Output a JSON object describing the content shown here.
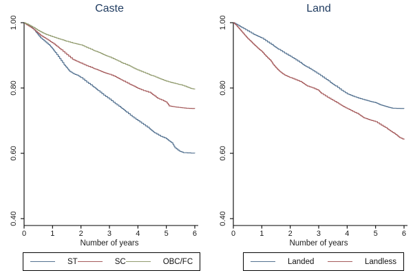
{
  "figure": {
    "background": "#ffffff",
    "title_color": "#1e3a5f",
    "axis_color": "#1a1a1a"
  },
  "chart_data": [
    {
      "type": "line",
      "subtype": "kaplan-meier-step",
      "title": "Caste",
      "xlabel": "Number of years",
      "ylabel": "",
      "xlim": [
        0,
        6
      ],
      "ylim": [
        0.4,
        1.0
      ],
      "grid": false,
      "legend_position": "bottom",
      "x_ticks": [
        0,
        1,
        2,
        3,
        4,
        5,
        6
      ],
      "x_tick_labels": [
        "0",
        "1",
        "2",
        "3",
        "4",
        "5",
        "6"
      ],
      "y_ticks": [
        1.0,
        0.8,
        0.6,
        0.4
      ],
      "y_tick_labels": [
        "1.00",
        "0.80",
        "0.60",
        "0.40"
      ],
      "series": [
        {
          "name": "ST",
          "color": "#52708f",
          "points": [
            [
              0,
              1
            ],
            [
              0.1,
              0.995
            ],
            [
              0.25,
              0.987
            ],
            [
              0.4,
              0.973
            ],
            [
              0.5,
              0.962
            ],
            [
              0.6,
              0.952
            ],
            [
              0.75,
              0.941
            ],
            [
              0.9,
              0.93
            ],
            [
              1,
              0.92
            ],
            [
              1.1,
              0.908
            ],
            [
              1.25,
              0.89
            ],
            [
              1.4,
              0.872
            ],
            [
              1.5,
              0.862
            ],
            [
              1.6,
              0.851
            ],
            [
              1.75,
              0.843
            ],
            [
              1.9,
              0.838
            ],
            [
              2,
              0.832
            ],
            [
              2.2,
              0.818
            ],
            [
              2.4,
              0.806
            ],
            [
              2.5,
              0.8
            ],
            [
              2.6,
              0.792
            ],
            [
              2.8,
              0.778
            ],
            [
              3,
              0.766
            ],
            [
              3.2,
              0.752
            ],
            [
              3.4,
              0.74
            ],
            [
              3.5,
              0.734
            ],
            [
              3.6,
              0.726
            ],
            [
              3.8,
              0.712
            ],
            [
              4,
              0.7
            ],
            [
              4.2,
              0.688
            ],
            [
              4.4,
              0.676
            ],
            [
              4.5,
              0.669
            ],
            [
              4.6,
              0.662
            ],
            [
              4.8,
              0.652
            ],
            [
              5,
              0.645
            ],
            [
              5.1,
              0.638
            ],
            [
              5.2,
              0.632
            ],
            [
              5.3,
              0.617
            ],
            [
              5.45,
              0.607
            ],
            [
              5.6,
              0.602
            ],
            [
              6,
              0.6
            ]
          ]
        },
        {
          "name": "SC",
          "color": "#a4595a",
          "points": [
            [
              0,
              1
            ],
            [
              0.1,
              0.993
            ],
            [
              0.25,
              0.985
            ],
            [
              0.4,
              0.975
            ],
            [
              0.5,
              0.968
            ],
            [
              0.6,
              0.96
            ],
            [
              0.75,
              0.952
            ],
            [
              0.9,
              0.944
            ],
            [
              1,
              0.938
            ],
            [
              1.15,
              0.928
            ],
            [
              1.3,
              0.917
            ],
            [
              1.5,
              0.902
            ],
            [
              1.7,
              0.888
            ],
            [
              1.85,
              0.882
            ],
            [
              2,
              0.876
            ],
            [
              2.2,
              0.868
            ],
            [
              2.4,
              0.862
            ],
            [
              2.5,
              0.858
            ],
            [
              2.7,
              0.851
            ],
            [
              2.85,
              0.846
            ],
            [
              3,
              0.842
            ],
            [
              3.2,
              0.835
            ],
            [
              3.35,
              0.828
            ],
            [
              3.5,
              0.821
            ],
            [
              3.7,
              0.812
            ],
            [
              3.85,
              0.806
            ],
            [
              4,
              0.799
            ],
            [
              4.2,
              0.792
            ],
            [
              4.45,
              0.785
            ],
            [
              4.55,
              0.778
            ],
            [
              4.7,
              0.768
            ],
            [
              4.9,
              0.761
            ],
            [
              5,
              0.757
            ],
            [
              5.1,
              0.745
            ],
            [
              5.3,
              0.742
            ],
            [
              5.5,
              0.74
            ],
            [
              5.7,
              0.738
            ],
            [
              6,
              0.737
            ]
          ]
        },
        {
          "name": "OBC/FC",
          "color": "#909a6d",
          "points": [
            [
              0,
              1
            ],
            [
              0.1,
              0.996
            ],
            [
              0.25,
              0.989
            ],
            [
              0.4,
              0.982
            ],
            [
              0.5,
              0.976
            ],
            [
              0.65,
              0.969
            ],
            [
              0.8,
              0.963
            ],
            [
              1,
              0.957
            ],
            [
              1.2,
              0.951
            ],
            [
              1.4,
              0.946
            ],
            [
              1.5,
              0.943
            ],
            [
              1.7,
              0.938
            ],
            [
              1.85,
              0.935
            ],
            [
              2,
              0.932
            ],
            [
              2.2,
              0.924
            ],
            [
              2.4,
              0.917
            ],
            [
              2.5,
              0.913
            ],
            [
              2.7,
              0.906
            ],
            [
              2.85,
              0.9
            ],
            [
              3,
              0.895
            ],
            [
              3.2,
              0.887
            ],
            [
              3.4,
              0.879
            ],
            [
              3.5,
              0.875
            ],
            [
              3.7,
              0.868
            ],
            [
              3.85,
              0.861
            ],
            [
              4,
              0.855
            ],
            [
              4.2,
              0.848
            ],
            [
              4.4,
              0.841
            ],
            [
              4.5,
              0.838
            ],
            [
              4.7,
              0.831
            ],
            [
              4.85,
              0.826
            ],
            [
              5,
              0.821
            ],
            [
              5.2,
              0.816
            ],
            [
              5.4,
              0.812
            ],
            [
              5.5,
              0.81
            ],
            [
              5.7,
              0.804
            ],
            [
              5.85,
              0.799
            ],
            [
              6,
              0.796
            ]
          ]
        }
      ]
    },
    {
      "type": "line",
      "subtype": "kaplan-meier-step",
      "title": "Land",
      "xlabel": "Number of years",
      "ylabel": "",
      "xlim": [
        0,
        6
      ],
      "ylim": [
        0.4,
        1.0
      ],
      "grid": false,
      "legend_position": "bottom",
      "x_ticks": [
        0,
        1,
        2,
        3,
        4,
        5,
        6
      ],
      "x_tick_labels": [
        "0",
        "1",
        "2",
        "3",
        "4",
        "5",
        "6"
      ],
      "y_ticks": [
        1.0,
        0.8,
        0.6,
        0.4
      ],
      "y_tick_labels": [
        "1.00",
        "0.80",
        "0.60",
        "0.40"
      ],
      "series": [
        {
          "name": "Landed",
          "color": "#52708f",
          "points": [
            [
              0,
              1
            ],
            [
              0.15,
              0.993
            ],
            [
              0.3,
              0.985
            ],
            [
              0.5,
              0.975
            ],
            [
              0.7,
              0.965
            ],
            [
              0.85,
              0.959
            ],
            [
              1,
              0.953
            ],
            [
              1.2,
              0.941
            ],
            [
              1.4,
              0.93
            ],
            [
              1.5,
              0.924
            ],
            [
              1.6,
              0.918
            ],
            [
              1.8,
              0.907
            ],
            [
              2,
              0.897
            ],
            [
              2.2,
              0.886
            ],
            [
              2.4,
              0.875
            ],
            [
              2.5,
              0.869
            ],
            [
              2.6,
              0.864
            ],
            [
              2.8,
              0.853
            ],
            [
              3,
              0.842
            ],
            [
              3.2,
              0.83
            ],
            [
              3.4,
              0.818
            ],
            [
              3.5,
              0.812
            ],
            [
              3.6,
              0.806
            ],
            [
              3.8,
              0.793
            ],
            [
              4,
              0.782
            ],
            [
              4.2,
              0.775
            ],
            [
              4.4,
              0.769
            ],
            [
              4.6,
              0.764
            ],
            [
              4.8,
              0.759
            ],
            [
              5,
              0.755
            ],
            [
              5.15,
              0.749
            ],
            [
              5.3,
              0.745
            ],
            [
              5.45,
              0.741
            ],
            [
              5.6,
              0.738
            ],
            [
              6,
              0.737
            ]
          ]
        },
        {
          "name": "Landless",
          "color": "#a4595a",
          "points": [
            [
              0,
              1
            ],
            [
              0.1,
              0.992
            ],
            [
              0.2,
              0.982
            ],
            [
              0.3,
              0.972
            ],
            [
              0.4,
              0.962
            ],
            [
              0.5,
              0.952
            ],
            [
              0.6,
              0.944
            ],
            [
              0.7,
              0.935
            ],
            [
              0.8,
              0.927
            ],
            [
              0.9,
              0.919
            ],
            [
              1,
              0.912
            ],
            [
              1.1,
              0.902
            ],
            [
              1.2,
              0.893
            ],
            [
              1.3,
              0.885
            ],
            [
              1.4,
              0.872
            ],
            [
              1.5,
              0.862
            ],
            [
              1.6,
              0.853
            ],
            [
              1.7,
              0.846
            ],
            [
              1.8,
              0.84
            ],
            [
              1.9,
              0.836
            ],
            [
              2,
              0.832
            ],
            [
              2.2,
              0.825
            ],
            [
              2.4,
              0.818
            ],
            [
              2.5,
              0.812
            ],
            [
              2.6,
              0.806
            ],
            [
              2.8,
              0.8
            ],
            [
              3,
              0.792
            ],
            [
              3.1,
              0.783
            ],
            [
              3.3,
              0.772
            ],
            [
              3.5,
              0.762
            ],
            [
              3.7,
              0.752
            ],
            [
              3.85,
              0.744
            ],
            [
              4,
              0.737
            ],
            [
              4.2,
              0.728
            ],
            [
              4.4,
              0.72
            ],
            [
              4.5,
              0.714
            ],
            [
              4.6,
              0.708
            ],
            [
              4.8,
              0.702
            ],
            [
              5,
              0.697
            ],
            [
              5.2,
              0.686
            ],
            [
              5.4,
              0.676
            ],
            [
              5.5,
              0.67
            ],
            [
              5.6,
              0.664
            ],
            [
              5.75,
              0.655
            ],
            [
              5.85,
              0.648
            ],
            [
              6,
              0.642
            ]
          ]
        }
      ]
    }
  ]
}
